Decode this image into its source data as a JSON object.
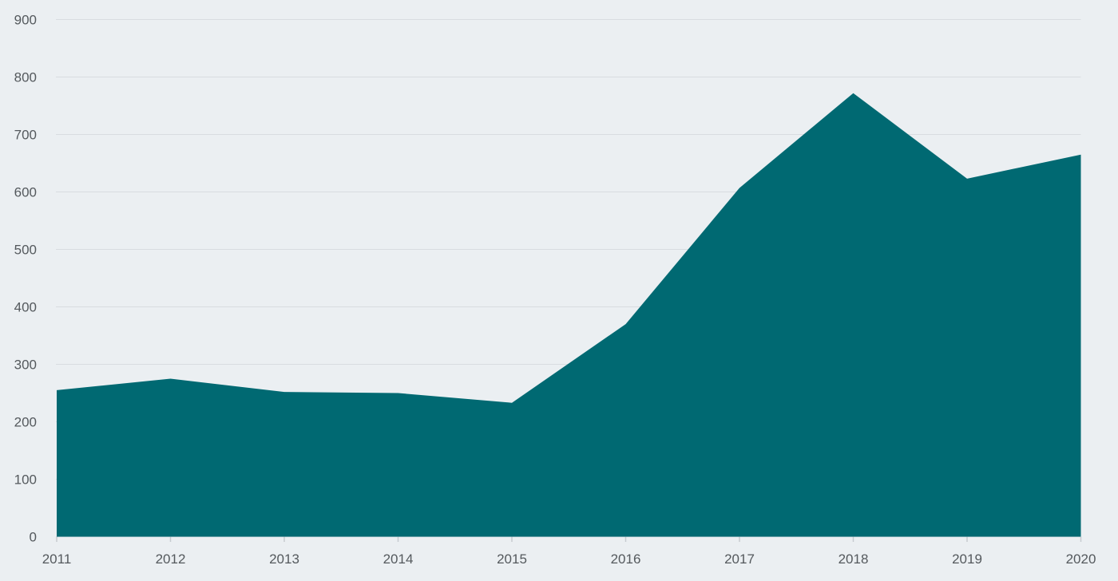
{
  "chart_data": {
    "type": "area",
    "title": "",
    "xlabel": "",
    "ylabel": "",
    "x": [
      2011,
      2012,
      2013,
      2014,
      2015,
      2016,
      2017,
      2018,
      2019,
      2020
    ],
    "series": [
      {
        "name": "value",
        "values": [
          255,
          275,
          252,
          250,
          233,
          370,
          607,
          772,
          623,
          665
        ]
      }
    ],
    "ylim": [
      0,
      900
    ],
    "y_ticks": [
      0,
      100,
      200,
      300,
      400,
      500,
      600,
      700,
      800,
      900
    ],
    "grid": true,
    "legend": "none",
    "colors": {
      "area_fill": "#006972",
      "background": "#ebeff2",
      "grid_line": "#d8dce0",
      "tick_mark": "#c6cbd0",
      "axis_label": "#54595d"
    }
  }
}
